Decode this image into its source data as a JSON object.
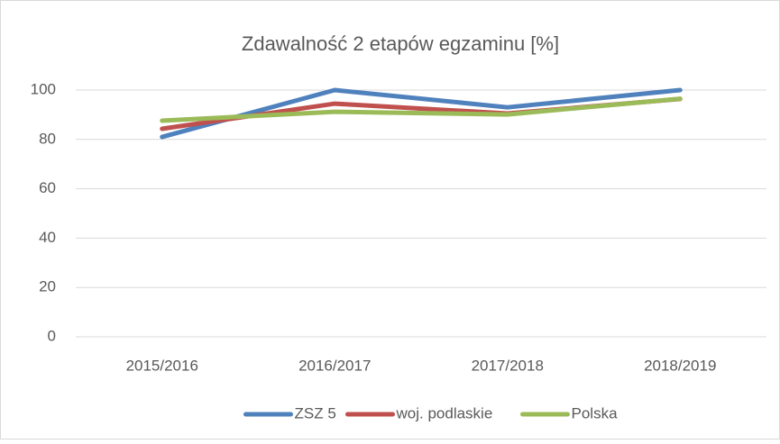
{
  "chart_data": {
    "type": "line",
    "title": "Zdawalność 2 etapów egzaminu [%]",
    "categories": [
      "2015/2016",
      "2016/2017",
      "2017/2018",
      "2018/2019"
    ],
    "series": [
      {
        "name": "ZSZ 5",
        "color": "#4f81bd",
        "values": [
          81,
          100,
          93,
          100
        ]
      },
      {
        "name": "woj. podlaskie",
        "color": "#c0504d",
        "values": [
          84.3,
          94.5,
          90.5,
          96.4
        ]
      },
      {
        "name": "Polska",
        "color": "#9bbb59",
        "values": [
          87.6,
          91.2,
          90.1,
          96.5
        ]
      }
    ],
    "ylim": [
      0,
      100
    ],
    "yticks": [
      0,
      20,
      40,
      60,
      80,
      100
    ],
    "grid": true,
    "legend": "bottom"
  }
}
